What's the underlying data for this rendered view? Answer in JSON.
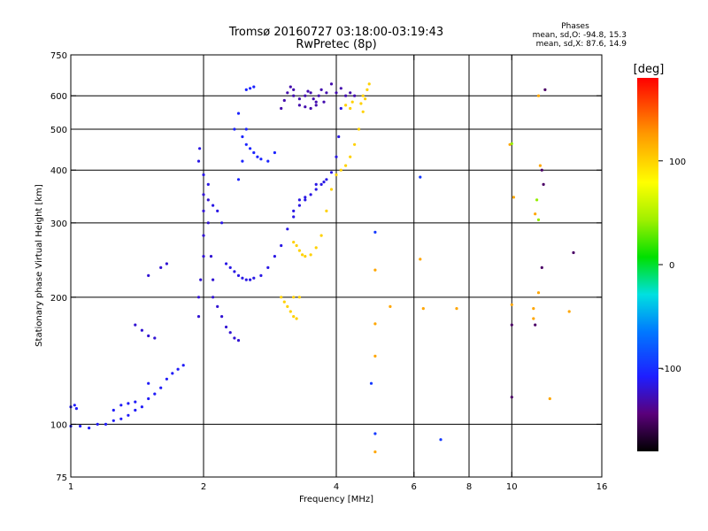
{
  "chart_data": {
    "type": "scatter",
    "title": "Tromsø 20160727 03:18:00-03:19:43",
    "subtitle": "RwPretec (8p)",
    "xlabel": "Frequency [MHz]",
    "ylabel": "Stationary phase Virtual Height [km]",
    "x_scale": "log",
    "y_scale": "log",
    "xlim": [
      1,
      16
    ],
    "ylim": [
      75,
      750
    ],
    "x_ticks": [
      1,
      2,
      4,
      6,
      8,
      10,
      16
    ],
    "x_tick_labels": [
      "1",
      "2",
      "4",
      "6",
      "8",
      "10",
      "16"
    ],
    "y_ticks": [
      75,
      100,
      200,
      300,
      400,
      500,
      600,
      750
    ],
    "y_tick_labels": [
      "75",
      "100",
      "200",
      "300",
      "400",
      "500",
      "600",
      "750"
    ],
    "grid_x": [
      2,
      4,
      6,
      8,
      10
    ],
    "grid_y": [
      100,
      200,
      300,
      400,
      500,
      600
    ],
    "grid": true,
    "stats": {
      "title": "Phases",
      "line_o": "mean, sd,O: -94.8, 15.3",
      "line_x": "mean, sd,X:  87.6, 14.9"
    },
    "colorbar": {
      "label": "[deg]",
      "range": [
        -180,
        180
      ],
      "tick_values": [
        100,
        0,
        -100
      ],
      "tick_labels": [
        "100",
        "0",
        "-100"
      ]
    },
    "series": [
      {
        "phase": -110,
        "points": [
          [
            1.0,
            110
          ],
          [
            1.02,
            111
          ],
          [
            1.03,
            109
          ],
          [
            1.0,
            99
          ],
          [
            1.05,
            99
          ],
          [
            1.1,
            98
          ],
          [
            1.15,
            100
          ],
          [
            1.2,
            100
          ],
          [
            1.25,
            102
          ],
          [
            1.3,
            103
          ],
          [
            1.35,
            105
          ],
          [
            1.4,
            108
          ],
          [
            1.45,
            110
          ],
          [
            1.5,
            115
          ],
          [
            1.55,
            118
          ],
          [
            1.6,
            122
          ],
          [
            1.65,
            128
          ],
          [
            1.7,
            132
          ],
          [
            1.75,
            135
          ],
          [
            1.8,
            138
          ],
          [
            1.35,
            112
          ],
          [
            1.4,
            113
          ],
          [
            1.3,
            111
          ],
          [
            1.25,
            108
          ],
          [
            1.5,
            125
          ]
        ]
      },
      {
        "phase": -120,
        "points": [
          [
            1.4,
            172
          ],
          [
            1.45,
            167
          ],
          [
            1.5,
            162
          ],
          [
            1.55,
            160
          ],
          [
            1.6,
            235
          ],
          [
            1.65,
            240
          ],
          [
            1.5,
            225
          ],
          [
            1.95,
            180
          ],
          [
            1.95,
            200
          ],
          [
            1.97,
            220
          ],
          [
            2.0,
            250
          ],
          [
            2.0,
            280
          ],
          [
            2.0,
            320
          ],
          [
            2.0,
            350
          ],
          [
            2.05,
            340
          ],
          [
            2.05,
            300
          ],
          [
            2.08,
            250
          ],
          [
            2.1,
            220
          ],
          [
            2.1,
            200
          ],
          [
            2.15,
            190
          ],
          [
            2.2,
            180
          ],
          [
            2.25,
            170
          ],
          [
            2.3,
            165
          ],
          [
            2.35,
            160
          ],
          [
            2.4,
            158
          ]
        ]
      },
      {
        "phase": -115,
        "points": [
          [
            1.95,
            420
          ],
          [
            1.96,
            450
          ],
          [
            2.05,
            370
          ],
          [
            2.0,
            390
          ],
          [
            2.1,
            330
          ],
          [
            2.15,
            320
          ],
          [
            2.2,
            300
          ],
          [
            2.25,
            240
          ],
          [
            2.3,
            235
          ],
          [
            2.35,
            230
          ],
          [
            2.4,
            225
          ],
          [
            2.45,
            222
          ],
          [
            2.5,
            220
          ],
          [
            2.55,
            220
          ],
          [
            2.6,
            222
          ],
          [
            2.7,
            225
          ],
          [
            2.8,
            235
          ],
          [
            2.9,
            250
          ],
          [
            3.0,
            265
          ],
          [
            3.1,
            290
          ],
          [
            3.2,
            310
          ],
          [
            3.3,
            330
          ],
          [
            3.4,
            340
          ],
          [
            3.5,
            350
          ],
          [
            3.6,
            360
          ],
          [
            3.7,
            370
          ],
          [
            3.8,
            380
          ],
          [
            3.9,
            395
          ],
          [
            4.0,
            430
          ],
          [
            4.05,
            480
          ],
          [
            4.1,
            560
          ],
          [
            3.3,
            340
          ],
          [
            3.2,
            320
          ],
          [
            3.4,
            345
          ],
          [
            3.6,
            370
          ],
          [
            3.75,
            375
          ]
        ]
      },
      {
        "phase": -105,
        "points": [
          [
            2.4,
            380
          ],
          [
            2.45,
            420
          ],
          [
            2.5,
            460
          ],
          [
            2.55,
            450
          ],
          [
            2.6,
            440
          ],
          [
            2.65,
            430
          ],
          [
            2.7,
            425
          ],
          [
            2.8,
            420
          ],
          [
            2.9,
            440
          ],
          [
            2.5,
            620
          ],
          [
            2.55,
            625
          ],
          [
            2.6,
            630
          ],
          [
            2.4,
            545
          ],
          [
            2.35,
            500
          ],
          [
            2.45,
            480
          ],
          [
            2.5,
            500
          ]
        ]
      },
      {
        "phase": -130,
        "points": [
          [
            3.0,
            560
          ],
          [
            3.05,
            585
          ],
          [
            3.1,
            610
          ],
          [
            3.15,
            630
          ],
          [
            3.2,
            620
          ],
          [
            3.3,
            590
          ],
          [
            3.4,
            600
          ],
          [
            3.45,
            615
          ],
          [
            3.5,
            610
          ],
          [
            3.55,
            590
          ],
          [
            3.6,
            570
          ],
          [
            3.65,
            600
          ],
          [
            3.7,
            620
          ],
          [
            3.75,
            580
          ],
          [
            3.8,
            610
          ],
          [
            3.9,
            640
          ],
          [
            4.0,
            610
          ],
          [
            4.1,
            625
          ],
          [
            4.2,
            600
          ],
          [
            4.3,
            610
          ],
          [
            4.4,
            600
          ],
          [
            3.5,
            560
          ],
          [
            3.6,
            580
          ],
          [
            3.4,
            565
          ],
          [
            3.3,
            570
          ],
          [
            3.2,
            600
          ]
        ]
      },
      {
        "phase": 100,
        "points": [
          [
            3.0,
            200
          ],
          [
            3.05,
            195
          ],
          [
            3.1,
            190
          ],
          [
            3.15,
            185
          ],
          [
            3.2,
            180
          ],
          [
            3.25,
            178
          ],
          [
            3.2,
            200
          ],
          [
            3.3,
            200
          ],
          [
            3.2,
            270
          ],
          [
            3.25,
            265
          ],
          [
            3.3,
            258
          ],
          [
            3.35,
            252
          ],
          [
            3.4,
            250
          ],
          [
            3.5,
            252
          ],
          [
            3.6,
            262
          ],
          [
            3.7,
            280
          ],
          [
            3.8,
            320
          ],
          [
            3.9,
            360
          ],
          [
            4.0,
            390
          ],
          [
            4.1,
            400
          ],
          [
            4.2,
            410
          ],
          [
            4.3,
            430
          ],
          [
            4.4,
            460
          ],
          [
            4.5,
            500
          ],
          [
            4.6,
            550
          ],
          [
            4.65,
            590
          ],
          [
            4.7,
            620
          ],
          [
            4.75,
            640
          ],
          [
            4.2,
            570
          ],
          [
            4.3,
            560
          ],
          [
            4.35,
            580
          ],
          [
            4.55,
            575
          ],
          [
            4.6,
            600
          ]
        ]
      },
      {
        "phase": -95,
        "points": [
          [
            6.2,
            385
          ],
          [
            6.9,
            92
          ],
          [
            4.9,
            285
          ],
          [
            4.9,
            95
          ],
          [
            4.8,
            125
          ]
        ]
      },
      {
        "phase": 120,
        "points": [
          [
            4.9,
            232
          ],
          [
            4.9,
            173
          ],
          [
            5.3,
            190
          ],
          [
            6.2,
            246
          ],
          [
            6.3,
            188
          ],
          [
            7.5,
            188
          ],
          [
            10.0,
            192
          ],
          [
            11.2,
            188
          ],
          [
            11.5,
            205
          ],
          [
            11.2,
            178
          ],
          [
            13.5,
            185
          ],
          [
            10.1,
            345
          ],
          [
            9.9,
            460
          ],
          [
            11.3,
            315
          ],
          [
            11.6,
            410
          ],
          [
            12.2,
            115
          ],
          [
            4.9,
            86
          ],
          [
            4.9,
            145
          ],
          [
            11.5,
            600
          ]
        ]
      },
      {
        "phase": -150,
        "points": [
          [
            10.0,
            172
          ],
          [
            11.3,
            172
          ],
          [
            11.7,
            400
          ],
          [
            11.9,
            620
          ],
          [
            11.8,
            370
          ],
          [
            11.7,
            235
          ],
          [
            10.0,
            116
          ],
          [
            13.8,
            255
          ]
        ]
      },
      {
        "phase": 40,
        "points": [
          [
            10.0,
            462
          ],
          [
            11.4,
            340
          ],
          [
            11.5,
            305
          ]
        ]
      }
    ]
  }
}
